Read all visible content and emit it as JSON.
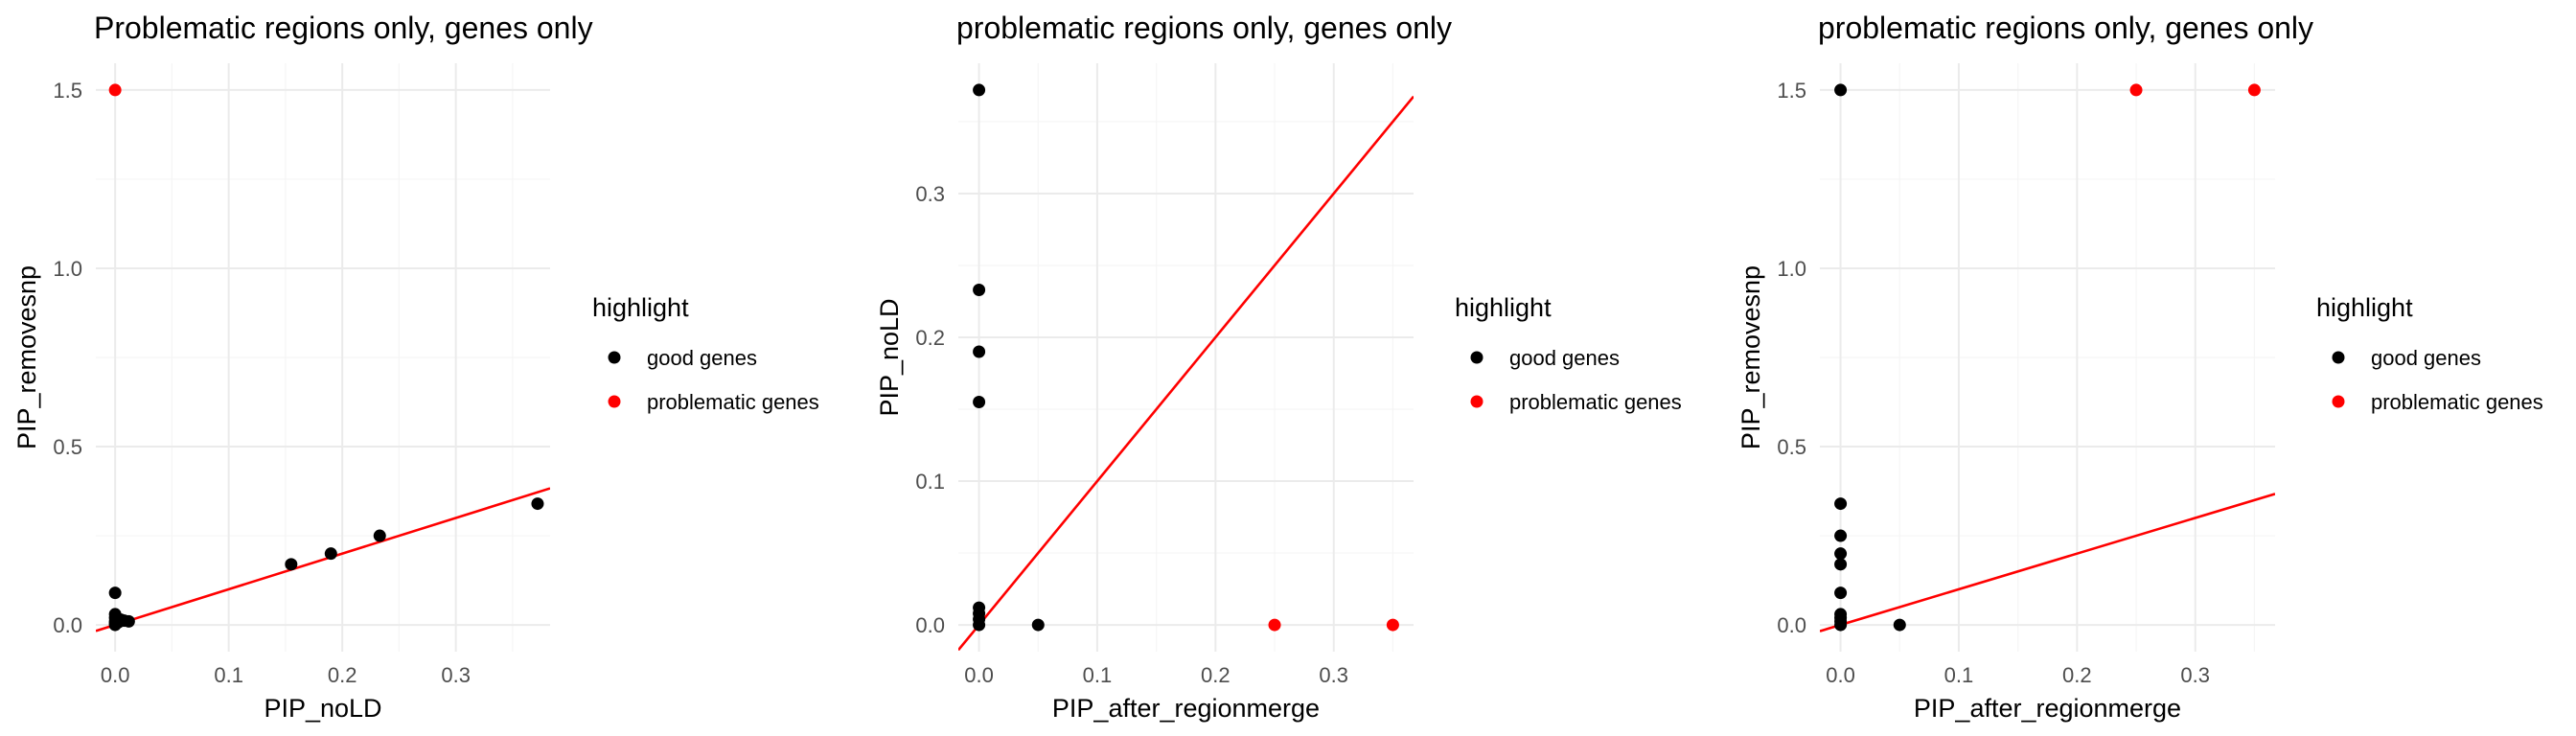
{
  "chart_data": [
    {
      "type": "scatter",
      "title": "Problematic regions only, genes only",
      "xlabel": "PIP_noLD",
      "ylabel": "PIP_removesnp",
      "xlim": [
        -0.017,
        0.383
      ],
      "ylim": [
        -0.075,
        1.575
      ],
      "x_ticks": [
        0.0,
        0.1,
        0.2,
        0.3
      ],
      "y_ticks": [
        0.0,
        0.5,
        1.0,
        1.5
      ],
      "x_tick_labels": [
        "0.0",
        "0.1",
        "0.2",
        "0.3"
      ],
      "y_tick_labels": [
        "0.0",
        "0.5",
        "1.0",
        "1.5"
      ],
      "grid": true,
      "legend": {
        "title": "highlight",
        "placement": "right",
        "entries": [
          "good genes",
          "problematic genes"
        ]
      },
      "series": [
        {
          "name": "good genes",
          "color": "#000000",
          "points": [
            [
              0.0,
              0.0
            ],
            [
              0.0,
              0.005
            ],
            [
              0.0,
              0.01
            ],
            [
              0.0,
              0.02
            ],
            [
              0.0,
              0.03
            ],
            [
              0.0,
              0.09
            ],
            [
              0.003,
              0.008
            ],
            [
              0.005,
              0.015
            ],
            [
              0.008,
              0.012
            ],
            [
              0.012,
              0.01
            ],
            [
              0.155,
              0.17
            ],
            [
              0.19,
              0.2
            ],
            [
              0.233,
              0.25
            ],
            [
              0.372,
              0.34
            ]
          ]
        },
        {
          "name": "problematic genes",
          "color": "#ff0000",
          "points": [
            [
              0.0,
              1.5
            ]
          ]
        }
      ],
      "reference_line": {
        "color": "#ff0000",
        "intercept": 0.0,
        "slope": 1.0
      }
    },
    {
      "type": "scatter",
      "title": "problematic regions only, genes only",
      "xlabel": "PIP_after_regionmerge",
      "ylabel": "PIP_noLD",
      "xlim": [
        -0.0175,
        0.3675
      ],
      "ylim": [
        -0.0186,
        0.3906
      ],
      "x_ticks": [
        0.0,
        0.1,
        0.2,
        0.3
      ],
      "y_ticks": [
        0.0,
        0.1,
        0.2,
        0.3
      ],
      "x_tick_labels": [
        "0.0",
        "0.1",
        "0.2",
        "0.3"
      ],
      "y_tick_labels": [
        "0.0",
        "0.1",
        "0.2",
        "0.3"
      ],
      "grid": true,
      "legend": {
        "title": "highlight",
        "placement": "right",
        "entries": [
          "good genes",
          "problematic genes"
        ]
      },
      "series": [
        {
          "name": "good genes",
          "color": "#000000",
          "points": [
            [
              0.0,
              0.372
            ],
            [
              0.0,
              0.233
            ],
            [
              0.0,
              0.19
            ],
            [
              0.0,
              0.155
            ],
            [
              0.0,
              0.012
            ],
            [
              0.0,
              0.008
            ],
            [
              0.0,
              0.004
            ],
            [
              0.0,
              0.0
            ],
            [
              0.05,
              0.0
            ]
          ]
        },
        {
          "name": "problematic genes",
          "color": "#ff0000",
          "points": [
            [
              0.25,
              0.0
            ],
            [
              0.35,
              0.0
            ]
          ]
        }
      ],
      "reference_line": {
        "color": "#ff0000",
        "intercept": 0.0,
        "slope": 1.0
      }
    },
    {
      "type": "scatter",
      "title": "problematic regions only, genes only",
      "xlabel": "PIP_after_regionmerge",
      "ylabel": "PIP_removesnp",
      "xlim": [
        -0.0175,
        0.3675
      ],
      "ylim": [
        -0.075,
        1.575
      ],
      "x_ticks": [
        0.0,
        0.1,
        0.2,
        0.3
      ],
      "y_ticks": [
        0.0,
        0.5,
        1.0,
        1.5
      ],
      "x_tick_labels": [
        "0.0",
        "0.1",
        "0.2",
        "0.3"
      ],
      "y_tick_labels": [
        "0.0",
        "0.5",
        "1.0",
        "1.5"
      ],
      "grid": true,
      "legend": {
        "title": "highlight",
        "placement": "right",
        "entries": [
          "good genes",
          "problematic genes"
        ]
      },
      "series": [
        {
          "name": "good genes",
          "color": "#000000",
          "points": [
            [
              0.0,
              1.5
            ],
            [
              0.0,
              0.34
            ],
            [
              0.0,
              0.25
            ],
            [
              0.0,
              0.2
            ],
            [
              0.0,
              0.17
            ],
            [
              0.0,
              0.09
            ],
            [
              0.0,
              0.03
            ],
            [
              0.0,
              0.02
            ],
            [
              0.0,
              0.01
            ],
            [
              0.0,
              0.0
            ],
            [
              0.05,
              0.0
            ]
          ]
        },
        {
          "name": "problematic genes",
          "color": "#ff0000",
          "points": [
            [
              0.25,
              1.5
            ],
            [
              0.35,
              1.5
            ]
          ]
        }
      ],
      "reference_line": {
        "color": "#ff0000",
        "intercept": 0.0,
        "slope": 1.0
      }
    }
  ]
}
